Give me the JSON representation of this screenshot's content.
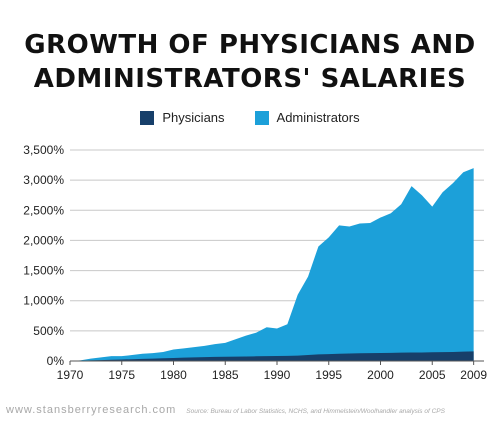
{
  "title": {
    "line1": "GROWTH OF PHYSICIANS AND",
    "line2": "ADMINISTRATORS' SALARIES"
  },
  "footer": {
    "website": "www.stansberryresearch.com",
    "source": "Source: Bureau of Labor Statistics, NCHS, and Himmelstein/Woolhandler analysis of CPS"
  },
  "colors": {
    "physicians": "#173f6a",
    "administrators": "#1ca0d9"
  },
  "chart_data": {
    "type": "area",
    "title": "GROWTH OF PHYSICIANS AND ADMINISTRATORS' SALARIES",
    "xlabel": "",
    "ylabel": "",
    "xlim": [
      1970,
      2010
    ],
    "ylim": [
      0,
      3500
    ],
    "grid": true,
    "legend_position": "top-center",
    "x_ticks": [
      1970,
      1975,
      1980,
      1985,
      1990,
      1995,
      2000,
      2005,
      2009
    ],
    "y_ticks": [
      {
        "value": 0,
        "label": "0%"
      },
      {
        "value": 500,
        "label": "500%"
      },
      {
        "value": 1000,
        "label": "1,000%"
      },
      {
        "value": 1500,
        "label": "1,500%"
      },
      {
        "value": 2000,
        "label": "2,000%"
      },
      {
        "value": 2500,
        "label": "2,500%"
      },
      {
        "value": 3000,
        "label": "3,000%"
      },
      {
        "value": 3500,
        "label": "3,500%"
      }
    ],
    "series": [
      {
        "name": "Administrators",
        "x": [
          1970,
          1971,
          1972,
          1973,
          1974,
          1975,
          1976,
          1977,
          1978,
          1979,
          1980,
          1981,
          1982,
          1983,
          1984,
          1985,
          1986,
          1987,
          1988,
          1989,
          1990,
          1991,
          1992,
          1993,
          1994,
          1995,
          1996,
          1997,
          1998,
          1999,
          2000,
          2001,
          2002,
          2003,
          2004,
          2005,
          2006,
          2007,
          2008,
          2009
        ],
        "values": [
          0,
          10,
          40,
          60,
          80,
          80,
          100,
          120,
          130,
          150,
          190,
          210,
          230,
          250,
          280,
          300,
          360,
          420,
          470,
          560,
          540,
          610,
          1100,
          1400,
          1900,
          2050,
          2250,
          2230,
          2280,
          2290,
          2380,
          2450,
          2600,
          2900,
          2750,
          2560,
          2800,
          2950,
          3130,
          3200
        ]
      },
      {
        "name": "Physicians",
        "x": [
          1970,
          1971,
          1972,
          1973,
          1974,
          1975,
          1976,
          1977,
          1978,
          1979,
          1980,
          1981,
          1982,
          1983,
          1984,
          1985,
          1986,
          1987,
          1988,
          1989,
          1990,
          1991,
          1992,
          1993,
          1994,
          1995,
          1996,
          1997,
          1998,
          1999,
          2000,
          2001,
          2002,
          2003,
          2004,
          2005,
          2006,
          2007,
          2008,
          2009
        ],
        "values": [
          0,
          3,
          10,
          15,
          20,
          25,
          30,
          35,
          40,
          45,
          50,
          55,
          60,
          65,
          68,
          70,
          72,
          75,
          78,
          80,
          82,
          85,
          90,
          100,
          110,
          115,
          120,
          125,
          128,
          130,
          132,
          135,
          138,
          140,
          142,
          145,
          148,
          150,
          155,
          160
        ]
      }
    ]
  }
}
